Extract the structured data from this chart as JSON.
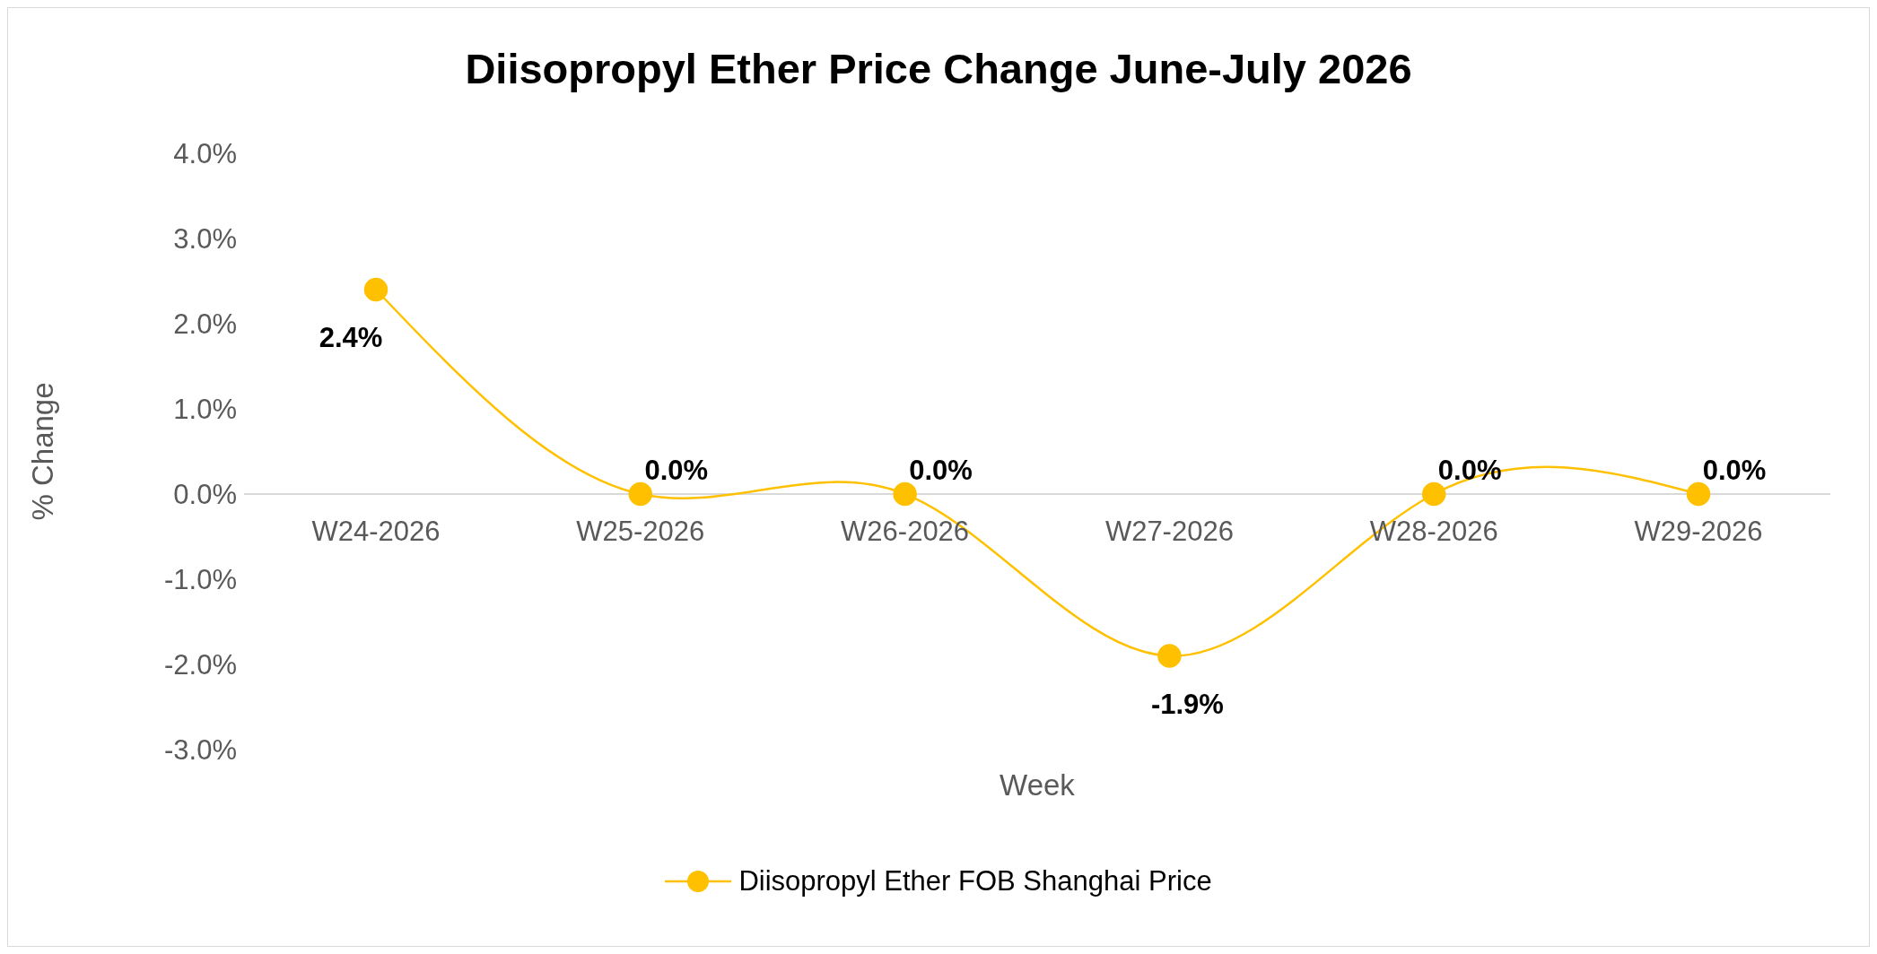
{
  "chart_data": {
    "type": "line",
    "title": "Diisopropyl Ether Price Change June-July 2026",
    "xlabel": "Week",
    "ylabel": "% Change",
    "categories": [
      "W24-2026",
      "W25-2026",
      "W26-2026",
      "W27-2026",
      "W28-2026",
      "W29-2026"
    ],
    "series": [
      {
        "name": "Diisopropyl Ether FOB Shanghai Price",
        "color": "#ffc000",
        "values": [
          2.4,
          0,
          0,
          -1.9,
          0,
          0
        ],
        "value_labels": [
          "2.4%",
          "0.0%",
          "0.0%",
          "-1.9%",
          "0.0%",
          "0.0%"
        ]
      }
    ],
    "ylim": [
      -3,
      4
    ],
    "yticks": [
      {
        "value": -3,
        "label": "-3.0%"
      },
      {
        "value": -2,
        "label": "-2.0%"
      },
      {
        "value": -1,
        "label": "-1.0%"
      },
      {
        "value": 0,
        "label": "0.0%"
      },
      {
        "value": 1,
        "label": "1.0%"
      },
      {
        "value": 2,
        "label": "2.0%"
      },
      {
        "value": 3,
        "label": "3.0%"
      },
      {
        "value": 4,
        "label": "4.0%"
      }
    ],
    "grid": false,
    "legend": "bottom",
    "marker": "circle",
    "line_style": "solid"
  }
}
